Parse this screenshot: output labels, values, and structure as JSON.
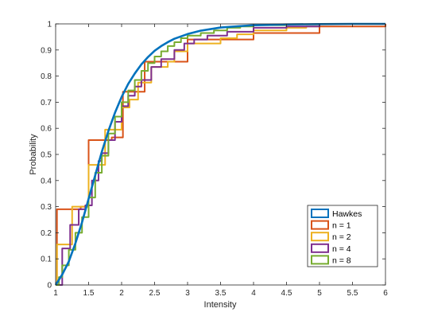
{
  "chart_data": {
    "type": "line",
    "title": "",
    "xlabel": "Intensity",
    "ylabel": "Probability",
    "xlim": [
      1,
      6
    ],
    "ylim": [
      0,
      1
    ],
    "x_ticks": [
      "1",
      "1.5",
      "2",
      "2.5",
      "3",
      "3.5",
      "4",
      "4.5",
      "5",
      "5.5",
      "6"
    ],
    "y_ticks": [
      "0",
      "0.1",
      "0.2",
      "0.3",
      "0.4",
      "0.5",
      "0.6",
      "0.7",
      "0.8",
      "0.9",
      "1"
    ],
    "grid": false,
    "legend_position": "bottom-right",
    "series": [
      {
        "name": "Hawkes",
        "color": "#0072BD",
        "style": "smooth",
        "x": [
          1,
          1.1,
          1.2,
          1.3,
          1.4,
          1.5,
          1.6,
          1.7,
          1.8,
          1.9,
          2.0,
          2.1,
          2.2,
          2.3,
          2.4,
          2.5,
          2.6,
          2.7,
          2.8,
          3.0,
          3.2,
          3.5,
          4.0,
          4.5,
          5.0,
          5.5,
          6.0
        ],
        "y": [
          0,
          0.04,
          0.09,
          0.16,
          0.24,
          0.33,
          0.42,
          0.51,
          0.59,
          0.66,
          0.72,
          0.77,
          0.81,
          0.845,
          0.873,
          0.897,
          0.915,
          0.93,
          0.943,
          0.961,
          0.974,
          0.986,
          0.995,
          0.998,
          0.999,
          1.0,
          1.0
        ]
      },
      {
        "name": "n = 1",
        "color": "#D95319",
        "style": "step",
        "x": [
          1.0,
          1.02,
          1.38,
          1.5,
          1.85,
          2.02,
          2.35,
          2.55,
          3.0,
          4.0,
          5.0,
          6.0
        ],
        "y": [
          0,
          0.29,
          0.3,
          0.555,
          0.565,
          0.74,
          0.855,
          0.855,
          0.94,
          0.965,
          0.99,
          1.0
        ]
      },
      {
        "name": "n = 2",
        "color": "#EDB120",
        "style": "step",
        "x": [
          1.0,
          1.02,
          1.25,
          1.4,
          1.5,
          1.6,
          1.75,
          2.0,
          2.12,
          2.25,
          2.45,
          2.7,
          2.8,
          3.0,
          3.3,
          3.5,
          3.75,
          4.0,
          4.5,
          4.8,
          5.0,
          6.0
        ],
        "y": [
          0,
          0.155,
          0.3,
          0.3,
          0.46,
          0.46,
          0.595,
          0.68,
          0.71,
          0.775,
          0.835,
          0.855,
          0.895,
          0.925,
          0.925,
          0.945,
          0.96,
          0.975,
          0.985,
          0.99,
          1.0,
          1.0
        ]
      },
      {
        "name": "n = 4",
        "color": "#7E2F8E",
        "style": "step",
        "x": [
          1.0,
          1.1,
          1.22,
          1.35,
          1.45,
          1.55,
          1.65,
          1.7,
          1.8,
          1.9,
          2.0,
          2.1,
          2.2,
          2.3,
          2.45,
          2.6,
          2.8,
          2.95,
          3.1,
          3.3,
          3.6,
          4.0,
          4.5,
          5.0,
          6.0
        ],
        "y": [
          0,
          0.14,
          0.23,
          0.29,
          0.305,
          0.4,
          0.475,
          0.505,
          0.555,
          0.625,
          0.685,
          0.725,
          0.76,
          0.785,
          0.835,
          0.865,
          0.9,
          0.925,
          0.94,
          0.955,
          0.97,
          0.985,
          0.99,
          1.0,
          1.0
        ]
      },
      {
        "name": "n = 8",
        "color": "#77AC30",
        "style": "step",
        "x": [
          1.0,
          1.05,
          1.1,
          1.2,
          1.3,
          1.4,
          1.5,
          1.6,
          1.7,
          1.8,
          1.9,
          2.0,
          2.1,
          2.2,
          2.3,
          2.4,
          2.5,
          2.6,
          2.7,
          2.8,
          2.9,
          3.0,
          3.2,
          3.4,
          3.6,
          3.8,
          4.0,
          4.5,
          5.0,
          6.0
        ],
        "y": [
          0,
          0.03,
          0.075,
          0.135,
          0.2,
          0.26,
          0.335,
          0.43,
          0.495,
          0.58,
          0.645,
          0.7,
          0.745,
          0.785,
          0.82,
          0.85,
          0.875,
          0.895,
          0.915,
          0.93,
          0.945,
          0.955,
          0.965,
          0.975,
          0.985,
          0.99,
          0.995,
          0.998,
          1.0,
          1.0
        ]
      }
    ]
  }
}
